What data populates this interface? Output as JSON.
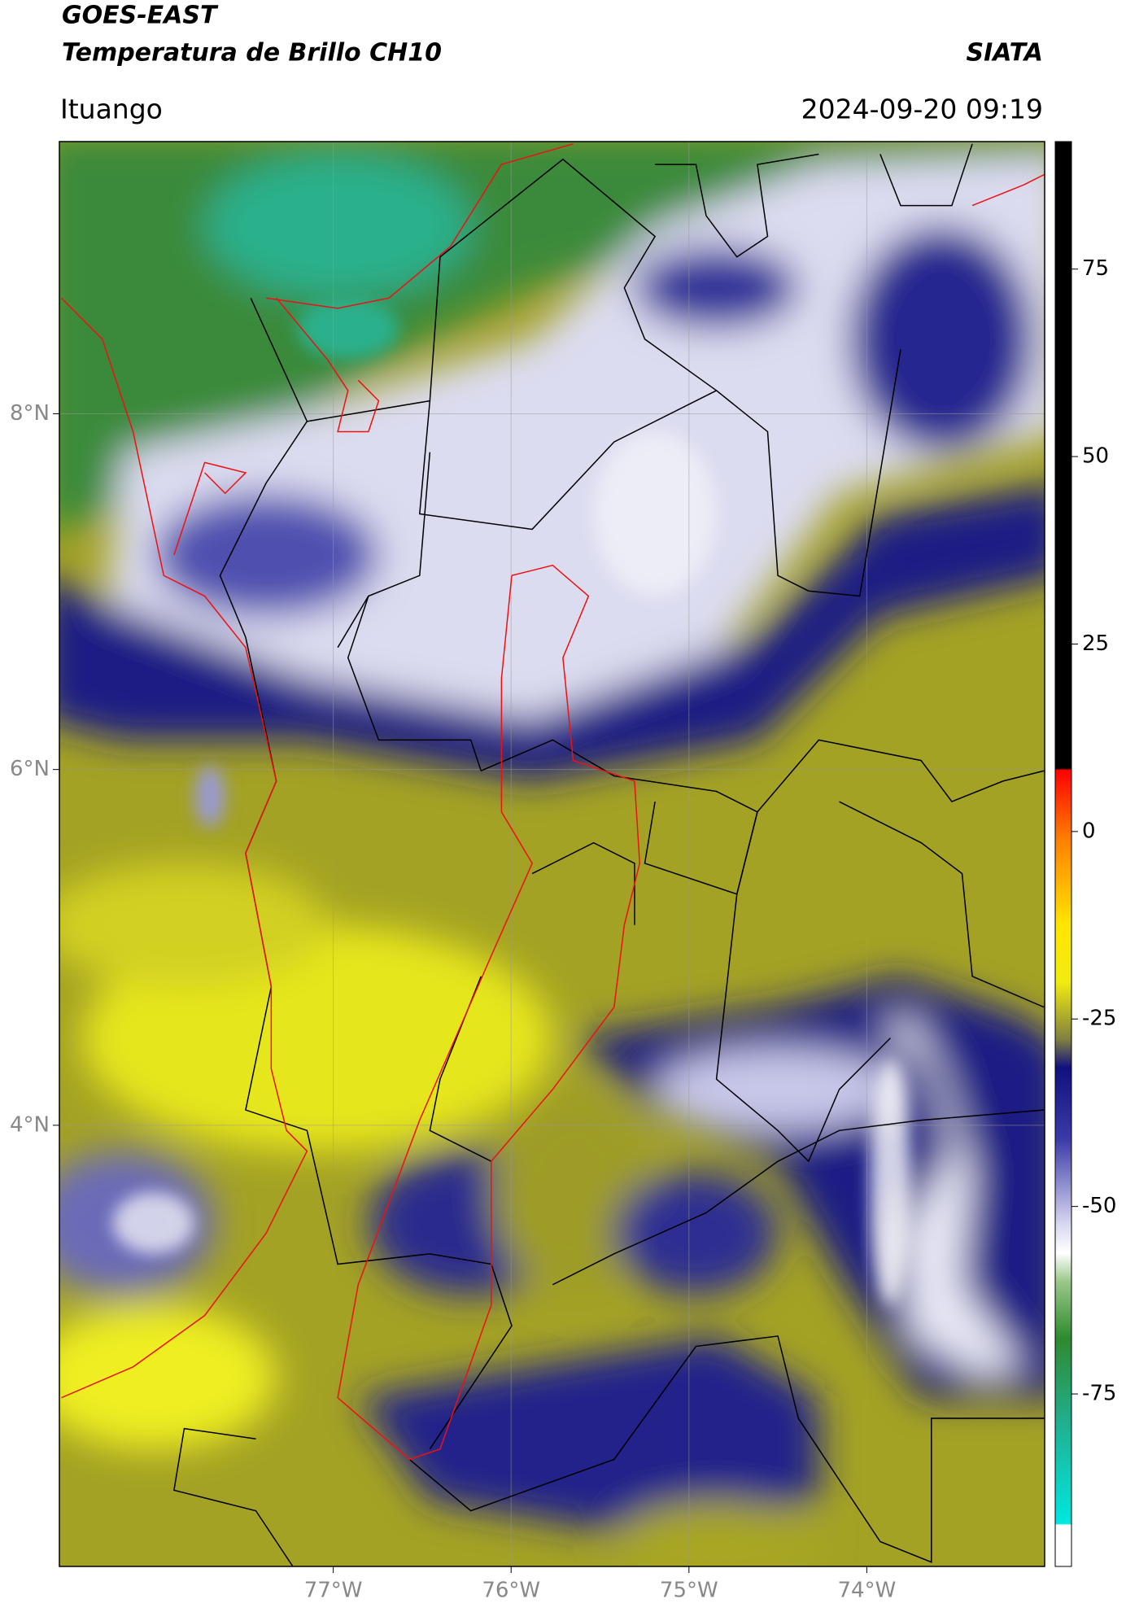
{
  "header": {
    "title": "GOES-EAST",
    "subtitle": "Temperatura de Brillo CH10",
    "source": "SIATA",
    "location": "Ituango",
    "datetime": "2024-09-20 09:19"
  },
  "map": {
    "lat_range": [
      1.52,
      9.53
    ],
    "lon_range": [
      -78.54,
      -73.0
    ],
    "lat_ticks": [
      {
        "value": 8,
        "label": "8°N"
      },
      {
        "value": 6,
        "label": "6°N"
      },
      {
        "value": 4,
        "label": "4°N"
      }
    ],
    "lon_ticks": [
      {
        "value": -77,
        "label": "77°W"
      },
      {
        "value": -76,
        "label": "76°W"
      },
      {
        "value": -75,
        "label": "75°W"
      },
      {
        "value": -74,
        "label": "74°W"
      }
    ]
  },
  "colorbar": {
    "range": [
      -98,
      92
    ],
    "ticks": [
      75,
      50,
      25,
      0,
      -25,
      -50,
      -75
    ]
  }
}
